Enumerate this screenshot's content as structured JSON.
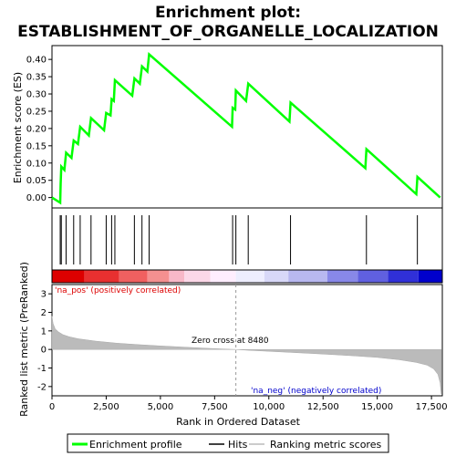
{
  "chart_data": {
    "type": "line",
    "title_line1": "Enrichment plot:",
    "title_line2": "ESTABLISHMENT_OF_ORGANELLE_LOCALIZATION",
    "es_panel": {
      "ylabel": "Enrichment score (ES)",
      "ylim": [
        -0.03,
        0.44
      ],
      "yticks": [
        "0.00",
        "0.05",
        "0.10",
        "0.15",
        "0.20",
        "0.25",
        "0.30",
        "0.35",
        "0.40"
      ],
      "ytick_values": [
        0,
        0.05,
        0.1,
        0.15,
        0.2,
        0.25,
        0.3,
        0.35,
        0.4
      ],
      "series": {
        "name": "Enrichment profile",
        "color": "#00ff00",
        "x": [
          0,
          380,
          400,
          430,
          570,
          650,
          900,
          1000,
          1200,
          1300,
          1700,
          1800,
          2400,
          2500,
          2700,
          2750,
          2850,
          2900,
          3700,
          3800,
          4050,
          4150,
          4400,
          4480,
          8300,
          8330,
          8450,
          8480,
          8950,
          9050,
          10950,
          11000,
          14450,
          14500,
          16800,
          16850,
          17900
        ],
        "y": [
          0.0,
          -0.015,
          0.04,
          0.09,
          0.08,
          0.13,
          0.115,
          0.165,
          0.155,
          0.205,
          0.18,
          0.23,
          0.195,
          0.245,
          0.238,
          0.285,
          0.28,
          0.34,
          0.295,
          0.345,
          0.33,
          0.38,
          0.365,
          0.415,
          0.205,
          0.26,
          0.255,
          0.31,
          0.28,
          0.33,
          0.22,
          0.275,
          0.085,
          0.14,
          0.01,
          0.06,
          0.0
        ]
      }
    },
    "hits": {
      "name": "Hits",
      "positions": [
        380,
        430,
        650,
        1000,
        1300,
        1800,
        2500,
        2750,
        2900,
        3800,
        4150,
        4480,
        8330,
        8480,
        9050,
        11000,
        14500,
        16850
      ]
    },
    "rank_panel": {
      "ylabel": "Ranked list metric (PreRanked)",
      "ylim": [
        -2.5,
        3.5
      ],
      "yticks": [
        "-2",
        "-1",
        "0",
        "1",
        "2",
        "3"
      ],
      "ytick_values": [
        -2,
        -1,
        0,
        1,
        2,
        3
      ],
      "xlabel": "Rank in Ordered Dataset",
      "xlim": [
        0,
        18000
      ],
      "xticks": [
        "0",
        "2,500",
        "5,000",
        "7,500",
        "10,000",
        "12,500",
        "15,000",
        "17,500"
      ],
      "xtick_values": [
        0,
        2500,
        5000,
        7500,
        10000,
        12500,
        15000,
        17500
      ],
      "zero_cross_label": "Zero cross at 8480",
      "zero_cross": 8480,
      "pos_label": "'na_pos' (positively correlated)",
      "neg_label": "'na_neg' (negatively correlated)",
      "pos_color": "#dd0000",
      "neg_color": "#0000cc",
      "metric_profile": {
        "name": "Ranking metric scores",
        "color": "#bbbbbb",
        "x": [
          0,
          50,
          150,
          300,
          500,
          800,
          1200,
          2000,
          3000,
          4000,
          5000,
          6000,
          7000,
          8000,
          8480,
          9000,
          10000,
          11000,
          12000,
          13000,
          14000,
          15000,
          16000,
          16800,
          17300,
          17600,
          17800,
          17900,
          17950
        ],
        "y": [
          1.8,
          1.4,
          1.1,
          0.95,
          0.8,
          0.68,
          0.58,
          0.45,
          0.34,
          0.26,
          0.19,
          0.13,
          0.07,
          0.02,
          0.0,
          -0.04,
          -0.1,
          -0.16,
          -0.22,
          -0.28,
          -0.35,
          -0.43,
          -0.55,
          -0.7,
          -0.85,
          -1.05,
          -1.35,
          -1.8,
          -2.4
        ]
      }
    },
    "legend": [
      "Enrichment profile",
      "Hits",
      "Ranking metric scores"
    ]
  }
}
